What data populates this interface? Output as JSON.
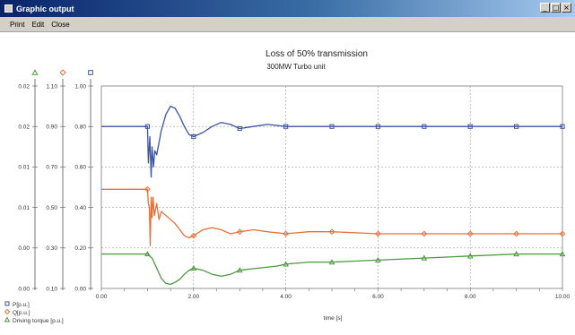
{
  "window": {
    "title": "Graphic output",
    "controls": [
      "_",
      "□",
      "×"
    ]
  },
  "menu": [
    "Print",
    "Edit",
    "Close"
  ],
  "chart_data": {
    "type": "line",
    "title": "Loss of 50% transmission",
    "subtitle": "300MW Turbo unit",
    "xlabel": "time [s]",
    "xlim": [
      0,
      10
    ],
    "x_ticks": [
      "0.00",
      "2.00",
      "4.00",
      "6.00",
      "8.00",
      "10.00"
    ],
    "grid": true,
    "legend_position": "bottom-left",
    "axes": [
      {
        "series": "P[p.u.]",
        "ylim": [
          0,
          1
        ],
        "ticks": [
          "1.00",
          "0.80",
          "0.60",
          "0.40",
          "0.20",
          "0.00"
        ],
        "marker": "square",
        "color": "#3b54a5"
      },
      {
        "series": "Q[p.u.]",
        "ylim": [
          0.1,
          1.1
        ],
        "ticks": [
          "1.10",
          "0.90",
          "0.70",
          "0.50",
          "0.30",
          "0.10"
        ],
        "marker": "diamond",
        "color": "#e8703a"
      },
      {
        "series": "Driving torque [p.u.]",
        "ticks": [
          "0.02",
          "0.02",
          "0.01",
          "0.01",
          "0.00",
          "0.00"
        ],
        "marker": "triangle",
        "color": "#4a9a3c"
      }
    ],
    "series": [
      {
        "name": "P[p.u.]",
        "axis": 0,
        "color": "#3b54a5",
        "x": [
          0,
          1.0,
          1.02,
          1.05,
          1.08,
          1.1,
          1.13,
          1.16,
          1.2,
          1.3,
          1.4,
          1.5,
          1.6,
          1.7,
          1.8,
          1.9,
          2.0,
          2.2,
          2.4,
          2.6,
          2.8,
          3.0,
          3.3,
          3.6,
          4.0,
          4.5,
          5.0,
          6.0,
          7.0,
          8.0,
          9.0,
          10.0
        ],
        "values": [
          0.8,
          0.8,
          0.62,
          0.75,
          0.55,
          0.7,
          0.6,
          0.68,
          0.66,
          0.78,
          0.86,
          0.9,
          0.89,
          0.85,
          0.8,
          0.76,
          0.75,
          0.77,
          0.8,
          0.82,
          0.81,
          0.79,
          0.8,
          0.81,
          0.8,
          0.8,
          0.8,
          0.8,
          0.8,
          0.8,
          0.8,
          0.8
        ]
      },
      {
        "name": "Q[p.u.]",
        "axis": 1,
        "color": "#e8703a",
        "x": [
          0,
          1.0,
          1.02,
          1.04,
          1.06,
          1.08,
          1.1,
          1.12,
          1.15,
          1.2,
          1.25,
          1.3,
          1.4,
          1.5,
          1.6,
          1.7,
          1.8,
          1.9,
          2.0,
          2.2,
          2.4,
          2.6,
          2.8,
          3.0,
          3.3,
          3.6,
          4.0,
          4.5,
          5.0,
          6.0,
          7.0,
          8.0,
          9.0,
          10.0
        ],
        "values": [
          0.59,
          0.59,
          0.52,
          0.5,
          0.31,
          0.55,
          0.45,
          0.55,
          0.46,
          0.52,
          0.44,
          0.48,
          0.46,
          0.44,
          0.42,
          0.39,
          0.36,
          0.35,
          0.36,
          0.39,
          0.4,
          0.39,
          0.37,
          0.38,
          0.39,
          0.38,
          0.37,
          0.38,
          0.38,
          0.37,
          0.37,
          0.37,
          0.37,
          0.37
        ]
      },
      {
        "name": "Driving torque [p.u.]",
        "axis": 0,
        "color": "#4a9a3c",
        "x": [
          0,
          1.0,
          1.1,
          1.2,
          1.3,
          1.4,
          1.5,
          1.6,
          1.7,
          1.8,
          1.9,
          2.0,
          2.2,
          2.4,
          2.6,
          2.8,
          3.0,
          3.4,
          3.8,
          4.0,
          4.5,
          5.0,
          6.0,
          7.0,
          8.0,
          9.0,
          10.0
        ],
        "values": [
          0.17,
          0.17,
          0.15,
          0.1,
          0.05,
          0.025,
          0.02,
          0.03,
          0.045,
          0.07,
          0.09,
          0.1,
          0.09,
          0.07,
          0.06,
          0.07,
          0.09,
          0.1,
          0.11,
          0.12,
          0.13,
          0.13,
          0.14,
          0.15,
          0.16,
          0.17,
          0.17
        ]
      }
    ]
  }
}
